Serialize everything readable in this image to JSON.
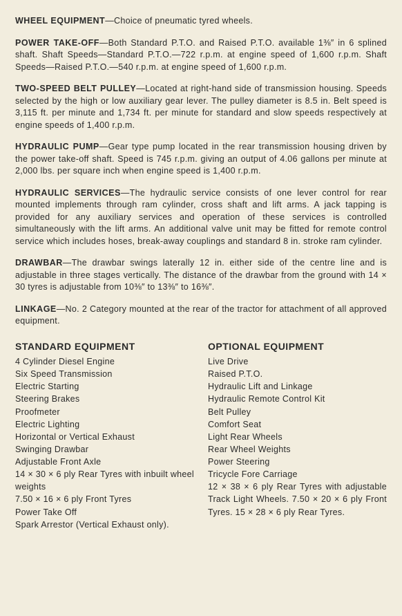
{
  "specs": [
    {
      "title": "WHEEL EQUIPMENT",
      "body": "—Choice of pneumatic tyred wheels."
    },
    {
      "title": "POWER TAKE-OFF",
      "body": "—Both Standard P.T.O. and Raised P.T.O. available 1⅜″ in 6 splined shaft. Shaft Speeds—Standard P.T.O.—722 r.p.m. at engine speed of 1,600 r.p.m. Shaft Speeds—Raised P.T.O.—540 r.p.m. at engine speed of 1,600 r.p.m."
    },
    {
      "title": "TWO-SPEED BELT PULLEY",
      "body": "—Located at right-hand side of transmission housing. Speeds selected by the high or low auxiliary gear lever. The pulley diameter is 8.5 in. Belt speed is 3,115 ft. per minute and 1,734 ft. per minute for standard and slow speeds respectively at engine speeds of 1,400 r.p.m."
    },
    {
      "title": "HYDRAULIC PUMP",
      "body": "—Gear type pump located in the rear transmission housing driven by the power take-off shaft. Speed is 745 r.p.m. giving an output of 4.06 gallons per minute at 2,000 lbs. per square inch when engine speed is 1,400 r.p.m."
    },
    {
      "title": "HYDRAULIC SERVICES",
      "body": "—The hydraulic service consists of one lever control for rear mounted implements through ram cylinder, cross shaft and lift arms. A jack tapping is provided for any auxiliary services and operation of these services is controlled simultaneously with the lift arms. An additional valve unit may be fitted for remote control service which includes hoses, break-away couplings and standard 8 in. stroke ram cylinder."
    },
    {
      "title": "DRAWBAR",
      "body": "—The drawbar swings laterally 12 in. either side of the centre line and is adjustable in three stages vertically. The distance of the drawbar from the ground with 14 × 30 tyres is adjustable from 10⅜″ to 13⅜″ to 16⅜″."
    },
    {
      "title": "LINKAGE",
      "body": "—No. 2 Category mounted at the rear of the tractor for attachment of all approved equipment."
    }
  ],
  "standard": {
    "title": "STANDARD EQUIPMENT",
    "items": [
      "4 Cylinder Diesel Engine",
      "Six Speed Transmission",
      "Electric Starting",
      "Steering Brakes",
      "Proofmeter",
      "Electric Lighting",
      "Horizontal or Vertical Exhaust",
      "Swinging Drawbar",
      "Adjustable Front Axle",
      "14 × 30 × 6 ply Rear Tyres with inbuilt wheel weights",
      "7.50 × 16 × 6 ply Front Tyres",
      "Power Take Off",
      "Spark Arrestor (Vertical Exhaust only)."
    ]
  },
  "optional": {
    "title": "OPTIONAL EQUIPMENT",
    "items": [
      "Live Drive",
      "Raised P.T.O.",
      "Hydraulic Lift and Linkage",
      "Hydraulic Remote Control Kit",
      "Belt Pulley",
      "Comfort Seat",
      "Light Rear Wheels",
      "Rear Wheel Weights",
      "Power Steering",
      "Tricycle Fore Carriage",
      "12 × 38 × 6 ply Rear Tyres with adjustable Track Light Wheels. 7.50 × 20 × 6 ply Front Tyres. 15 × 28 × 6 ply Rear Tyres."
    ]
  }
}
